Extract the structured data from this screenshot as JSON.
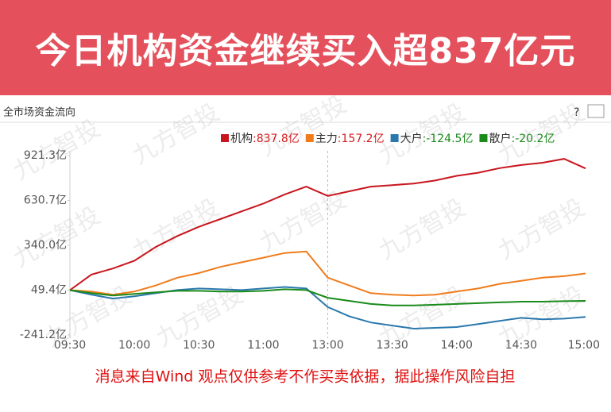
{
  "banner": {
    "title": "今日机构资金继续买入超837亿元"
  },
  "panel": {
    "title": "全市场资金流向",
    "help": "?"
  },
  "watermark": "九方智投",
  "footer": "消息来自Wind  观点仅供参考不作买卖依据，据此操作风险自担",
  "chart_data": {
    "type": "line",
    "x": [
      "09:30",
      "09:40",
      "09:50",
      "10:00",
      "10:10",
      "10:20",
      "10:30",
      "10:40",
      "10:50",
      "11:00",
      "11:10",
      "11:20",
      "13:00",
      "13:10",
      "13:20",
      "13:30",
      "13:40",
      "13:50",
      "14:00",
      "14:10",
      "14:20",
      "14:30",
      "14:40",
      "14:50",
      "15:00"
    ],
    "series": [
      {
        "name": "机构",
        "color": "#c8161d",
        "last_label": ":837.8亿",
        "values": [
          49.4,
          150,
          190,
          240,
          330,
          400,
          460,
          510,
          560,
          610,
          670,
          720,
          660,
          690,
          720,
          730,
          740,
          760,
          790,
          810,
          840,
          860,
          875,
          900,
          837.8
        ]
      },
      {
        "name": "主力",
        "color": "#f07c1c",
        "last_label": ":157.2亿",
        "values": [
          49.4,
          40,
          20,
          40,
          80,
          130,
          160,
          200,
          230,
          260,
          290,
          300,
          130,
          80,
          30,
          20,
          15,
          20,
          40,
          60,
          90,
          110,
          130,
          140,
          157.2
        ]
      },
      {
        "name": "大户",
        "color": "#2a78ad",
        "last_label": ":-124.5亿",
        "values": [
          49.4,
          20,
          -5,
          10,
          30,
          50,
          60,
          55,
          50,
          60,
          70,
          60,
          -60,
          -120,
          -160,
          -180,
          -200,
          -195,
          -190,
          -170,
          -150,
          -130,
          -140,
          -135,
          -124.5
        ]
      },
      {
        "name": "散户",
        "color": "#1a8a1a",
        "last_label": ":-20.2亿",
        "values": [
          49.4,
          30,
          15,
          25,
          35,
          45,
          45,
          40,
          40,
          45,
          55,
          50,
          0,
          -20,
          -40,
          -50,
          -50,
          -45,
          -40,
          -35,
          -30,
          -25,
          -25,
          -22,
          -20.2
        ]
      }
    ],
    "ylim": [
      -241.2,
      921.3
    ],
    "yticks": [
      {
        "value": 921.3,
        "label": "921.3亿"
      },
      {
        "value": 630.7,
        "label": "630.7亿"
      },
      {
        "value": 340.0,
        "label": "340.0亿"
      },
      {
        "value": 49.4,
        "label": "49.4亿"
      },
      {
        "value": -241.2,
        "label": "-241.2亿"
      }
    ],
    "session_break": "13:00",
    "up_color": "#d7191c",
    "down_color": "#1a8a1a"
  }
}
